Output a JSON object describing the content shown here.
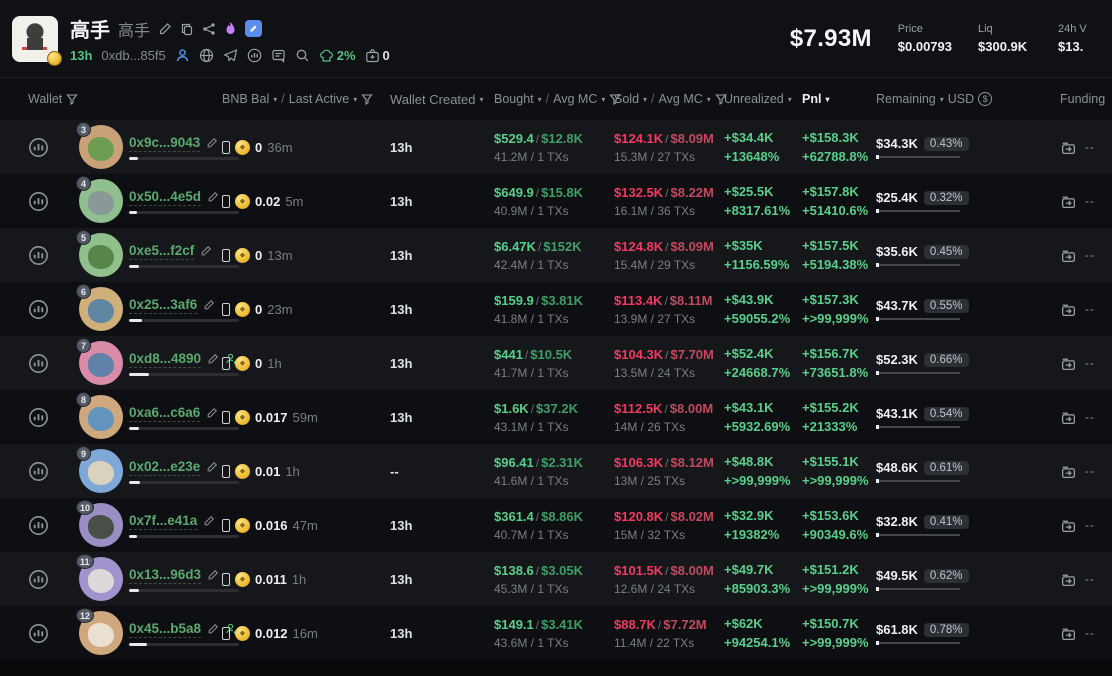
{
  "header": {
    "title": "高手",
    "subtitle": "高手",
    "age": "13h",
    "contract": "0xdb...85f5",
    "dev_pct": "2%",
    "like_count": "0",
    "mcap": "$7.93M",
    "accent_green": "#57c07f",
    "accent_red": "#ef3a62",
    "stats": [
      {
        "label": "Price",
        "value": "$0.00793"
      },
      {
        "label": "Liq",
        "value": "$300.9K"
      },
      {
        "label": "24h V",
        "value": "$13."
      }
    ]
  },
  "table": {
    "sep": "/",
    "headers": {
      "wallet": "Wallet",
      "bnb_bal": "BNB Bal",
      "last_active": "Last Active",
      "wallet_created": "Wallet Created",
      "bought": "Bought",
      "avg_mc": "Avg MC",
      "sold": "Sold",
      "avg_mc2": "Avg MC",
      "unrealized": "Unrealized",
      "pnl": "Pnl",
      "remaining": "Remaining",
      "usd": "USD",
      "funding": "Funding"
    },
    "rows": [
      {
        "rank": "3",
        "address": "0x9c...9043",
        "bnb": "0",
        "last_active": "36m",
        "created": "13h",
        "bought": "$529.4",
        "bought_avg": "$12.8K",
        "bought_sub": "41.2M / 1 TXs",
        "sold": "$124.1K",
        "sold_avg": "$8.09M",
        "sold_sub": "15.3M / 27 TXs",
        "unrealized": "+$34.4K",
        "unrealized_pct": "+13648%",
        "pnl": "+$158.3K",
        "pnl_pct": "+62788.8%",
        "remaining": "$34.3K",
        "remaining_pct": "0.43%",
        "funding": "--",
        "avatar_bg": "#c9a178",
        "avatar_fg": "#5d9c4a",
        "bar_pct": 8,
        "starred": false
      },
      {
        "rank": "4",
        "address": "0x50...4e5d",
        "bnb": "0.02",
        "last_active": "5m",
        "created": "13h",
        "bought": "$649.9",
        "bought_avg": "$15.8K",
        "bought_sub": "40.9M / 1 TXs",
        "sold": "$132.5K",
        "sold_avg": "$8.22M",
        "sold_sub": "16.1M / 36 TXs",
        "unrealized": "+$25.5K",
        "unrealized_pct": "+8317.61%",
        "pnl": "+$157.8K",
        "pnl_pct": "+51410.6%",
        "remaining": "$25.4K",
        "remaining_pct": "0.32%",
        "funding": "--",
        "avatar_bg": "#8fbf8e",
        "avatar_fg": "#8a9199",
        "bar_pct": 7,
        "starred": false
      },
      {
        "rank": "5",
        "address": "0xe5...f2cf",
        "bnb": "0",
        "last_active": "13m",
        "created": "13h",
        "bought": "$6.47K",
        "bought_avg": "$152K",
        "bought_sub": "42.4M / 1 TXs",
        "sold": "$124.8K",
        "sold_avg": "$8.09M",
        "sold_sub": "15.4M / 29 TXs",
        "unrealized": "+$35K",
        "unrealized_pct": "+1156.59%",
        "pnl": "+$157.5K",
        "pnl_pct": "+5194.38%",
        "remaining": "$35.6K",
        "remaining_pct": "0.45%",
        "funding": "--",
        "avatar_bg": "#90c08b",
        "avatar_fg": "#4f7a3d",
        "bar_pct": 9,
        "starred": false
      },
      {
        "rank": "6",
        "address": "0x25...3af6",
        "bnb": "0",
        "last_active": "23m",
        "created": "13h",
        "bought": "$159.9",
        "bought_avg": "$3.81K",
        "bought_sub": "41.8M / 1 TXs",
        "sold": "$113.4K",
        "sold_avg": "$8.11M",
        "sold_sub": "13.9M / 27 TXs",
        "unrealized": "+$43.9K",
        "unrealized_pct": "+59055.2%",
        "pnl": "+$157.3K",
        "pnl_pct": "+>99,999%",
        "remaining": "$43.7K",
        "remaining_pct": "0.55%",
        "funding": "--",
        "avatar_bg": "#d0b07a",
        "avatar_fg": "#4a7fa8",
        "bar_pct": 12,
        "starred": false
      },
      {
        "rank": "7",
        "address": "0xd8...4890",
        "bnb": "0",
        "last_active": "1h",
        "created": "13h",
        "bought": "$441",
        "bought_avg": "$10.5K",
        "bought_sub": "41.7M / 1 TXs",
        "sold": "$104.3K",
        "sold_avg": "$7.70M",
        "sold_sub": "13.5M / 24 TXs",
        "unrealized": "+$52.4K",
        "unrealized_pct": "+24668.7%",
        "pnl": "+$156.7K",
        "pnl_pct": "+73651.8%",
        "remaining": "$52.3K",
        "remaining_pct": "0.66%",
        "funding": "--",
        "avatar_bg": "#d98ba8",
        "avatar_fg": "#4a7fa8",
        "bar_pct": 18,
        "starred": true
      },
      {
        "rank": "8",
        "address": "0xa6...c6a6",
        "bnb": "0.017",
        "last_active": "59m",
        "created": "13h",
        "bought": "$1.6K",
        "bought_avg": "$37.2K",
        "bought_sub": "43.1M / 1 TXs",
        "sold": "$112.5K",
        "sold_avg": "$8.00M",
        "sold_sub": "14M / 26 TXs",
        "unrealized": "+$43.1K",
        "unrealized_pct": "+5932.69%",
        "pnl": "+$155.2K",
        "pnl_pct": "+21333%",
        "remaining": "$43.1K",
        "remaining_pct": "0.54%",
        "funding": "--",
        "avatar_bg": "#cfa97d",
        "avatar_fg": "#4f90c9",
        "bar_pct": 9,
        "starred": false
      },
      {
        "rank": "9",
        "address": "0x02...e23e",
        "bnb": "0.01",
        "last_active": "1h",
        "created": "--",
        "bought": "$96.41",
        "bought_avg": "$2.31K",
        "bought_sub": "41.6M / 1 TXs",
        "sold": "$106.3K",
        "sold_avg": "$8.12M",
        "sold_sub": "13M / 25 TXs",
        "unrealized": "+$48.8K",
        "unrealized_pct": "+>99,999%",
        "pnl": "+$155.1K",
        "pnl_pct": "+>99,999%",
        "remaining": "$48.6K",
        "remaining_pct": "0.61%",
        "funding": "--",
        "avatar_bg": "#7fa8d9",
        "avatar_fg": "#e8d9b8",
        "bar_pct": 10,
        "starred": false
      },
      {
        "rank": "10",
        "address": "0x7f...e41a",
        "bnb": "0.016",
        "last_active": "47m",
        "created": "13h",
        "bought": "$361.4",
        "bought_avg": "$8.86K",
        "bought_sub": "40.7M / 1 TXs",
        "sold": "$120.8K",
        "sold_avg": "$8.02M",
        "sold_sub": "15M / 32 TXs",
        "unrealized": "+$32.9K",
        "unrealized_pct": "+19382%",
        "pnl": "+$153.6K",
        "pnl_pct": "+90349.6%",
        "remaining": "$32.8K",
        "remaining_pct": "0.41%",
        "funding": "--",
        "avatar_bg": "#9b8ec4",
        "avatar_fg": "#3a4430",
        "bar_pct": 7,
        "starred": false
      },
      {
        "rank": "11",
        "address": "0x13...96d3",
        "bnb": "0.011",
        "last_active": "1h",
        "created": "13h",
        "bought": "$138.6",
        "bought_avg": "$3.05K",
        "bought_sub": "45.3M / 1 TXs",
        "sold": "$101.5K",
        "sold_avg": "$8.00M",
        "sold_sub": "12.6M / 24 TXs",
        "unrealized": "+$49.7K",
        "unrealized_pct": "+85903.3%",
        "pnl": "+$151.2K",
        "pnl_pct": "+>99,999%",
        "remaining": "$49.5K",
        "remaining_pct": "0.62%",
        "funding": "--",
        "avatar_bg": "#a193cc",
        "avatar_fg": "#e8e4dc",
        "bar_pct": 9,
        "starred": false
      },
      {
        "rank": "12",
        "address": "0x45...b5a8",
        "bnb": "0.012",
        "last_active": "16m",
        "created": "13h",
        "bought": "$149.1",
        "bought_avg": "$3.41K",
        "bought_sub": "43.6M / 1 TXs",
        "sold": "$88.7K",
        "sold_avg": "$7.72M",
        "sold_sub": "11.4M / 22 TXs",
        "unrealized": "+$62K",
        "unrealized_pct": "+94254.1%",
        "pnl": "+$150.7K",
        "pnl_pct": "+>99,999%",
        "remaining": "$61.8K",
        "remaining_pct": "0.78%",
        "funding": "--",
        "avatar_bg": "#cfa97d",
        "avatar_fg": "#efe9df",
        "bar_pct": 16,
        "starred": true
      }
    ]
  }
}
